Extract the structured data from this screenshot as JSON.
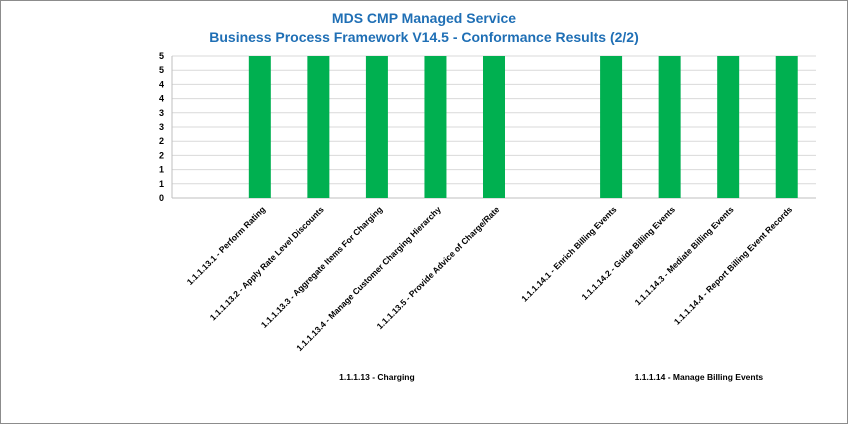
{
  "title_line1": "MDS CMP Managed Service",
  "title_line2": "Business Process Framework V14.5 - Conformance Results (2/2)",
  "colors": {
    "bar": "#00b050",
    "title": "#1f6fb5",
    "grid": "#d9d9d9"
  },
  "chart_data": {
    "type": "bar",
    "ylim": [
      0,
      5
    ],
    "yticks": [
      "0",
      "1",
      "1",
      "2",
      "2",
      "3",
      "3",
      "4",
      "4",
      "5",
      "5"
    ],
    "grid": true,
    "categories": [
      "1.1.1.13.1 - Perform Rating",
      "1.1.1.13.2 - Apply Rate Level Discounts",
      "1.1.1.13.3 - Aggregate Items For Charging",
      "1.1.1.13.4 - Manage Customer Charging Hierarchy",
      "1.1.1.13.5 - Provide Advice of Charge/Rate",
      "",
      "1.1.1.14.1 - Enrich Billing Events",
      "1.1.1.14.2 - Guide Billing Events",
      "1.1.1.14.3 - Mediate Billing Events",
      "1.1.1.14.4 - Report Billing Event Records"
    ],
    "values": [
      5,
      5,
      5,
      5,
      5,
      null,
      5,
      5,
      5,
      5
    ],
    "groups": [
      {
        "label": "1.1.1.13 - Charging"
      },
      {
        "label": "1.1.1.14 - Manage Billing Events"
      }
    ]
  }
}
